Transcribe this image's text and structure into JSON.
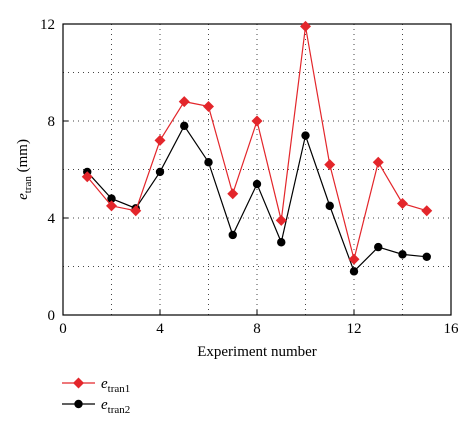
{
  "chart_data": {
    "type": "line",
    "xlabel": "Experiment number",
    "ylabel_main": "e",
    "ylabel_sub": "tran",
    "ylabel_unit": " (mm)",
    "xlim": [
      0,
      16
    ],
    "ylim": [
      0,
      12
    ],
    "xticks": [
      0,
      4,
      8,
      12,
      16
    ],
    "yticks": [
      0,
      4,
      8,
      12
    ],
    "grid": "dotted",
    "legend_position": "bottom-left",
    "x": [
      1,
      2,
      3,
      4,
      5,
      6,
      7,
      8,
      9,
      10,
      11,
      12,
      13,
      14,
      15
    ],
    "series": [
      {
        "name_main": "e",
        "name_sub": "tran1",
        "color": "#e3262b",
        "marker": "diamond",
        "values": [
          5.7,
          4.5,
          4.3,
          7.2,
          8.8,
          8.6,
          5.0,
          8.0,
          3.9,
          11.9,
          6.2,
          2.3,
          6.3,
          4.6,
          4.3
        ]
      },
      {
        "name_main": "e",
        "name_sub": "tran2",
        "color": "#000000",
        "marker": "circle",
        "values": [
          5.9,
          4.8,
          4.4,
          5.9,
          7.8,
          6.3,
          3.3,
          5.4,
          3.0,
          7.4,
          4.5,
          1.8,
          2.8,
          2.5,
          2.4
        ]
      }
    ]
  }
}
